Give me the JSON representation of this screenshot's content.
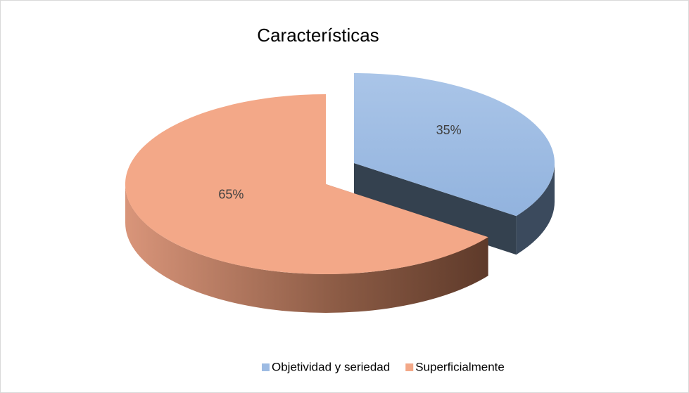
{
  "chart_data": {
    "type": "pie",
    "title": "Características",
    "categories": [
      "Objetividad y seriedad",
      "Superficialmente"
    ],
    "values": [
      35,
      65
    ],
    "value_labels": [
      "35%",
      "65%"
    ],
    "colors": [
      "#9dbbe3",
      "#f3a888"
    ],
    "legend": "bottom"
  }
}
